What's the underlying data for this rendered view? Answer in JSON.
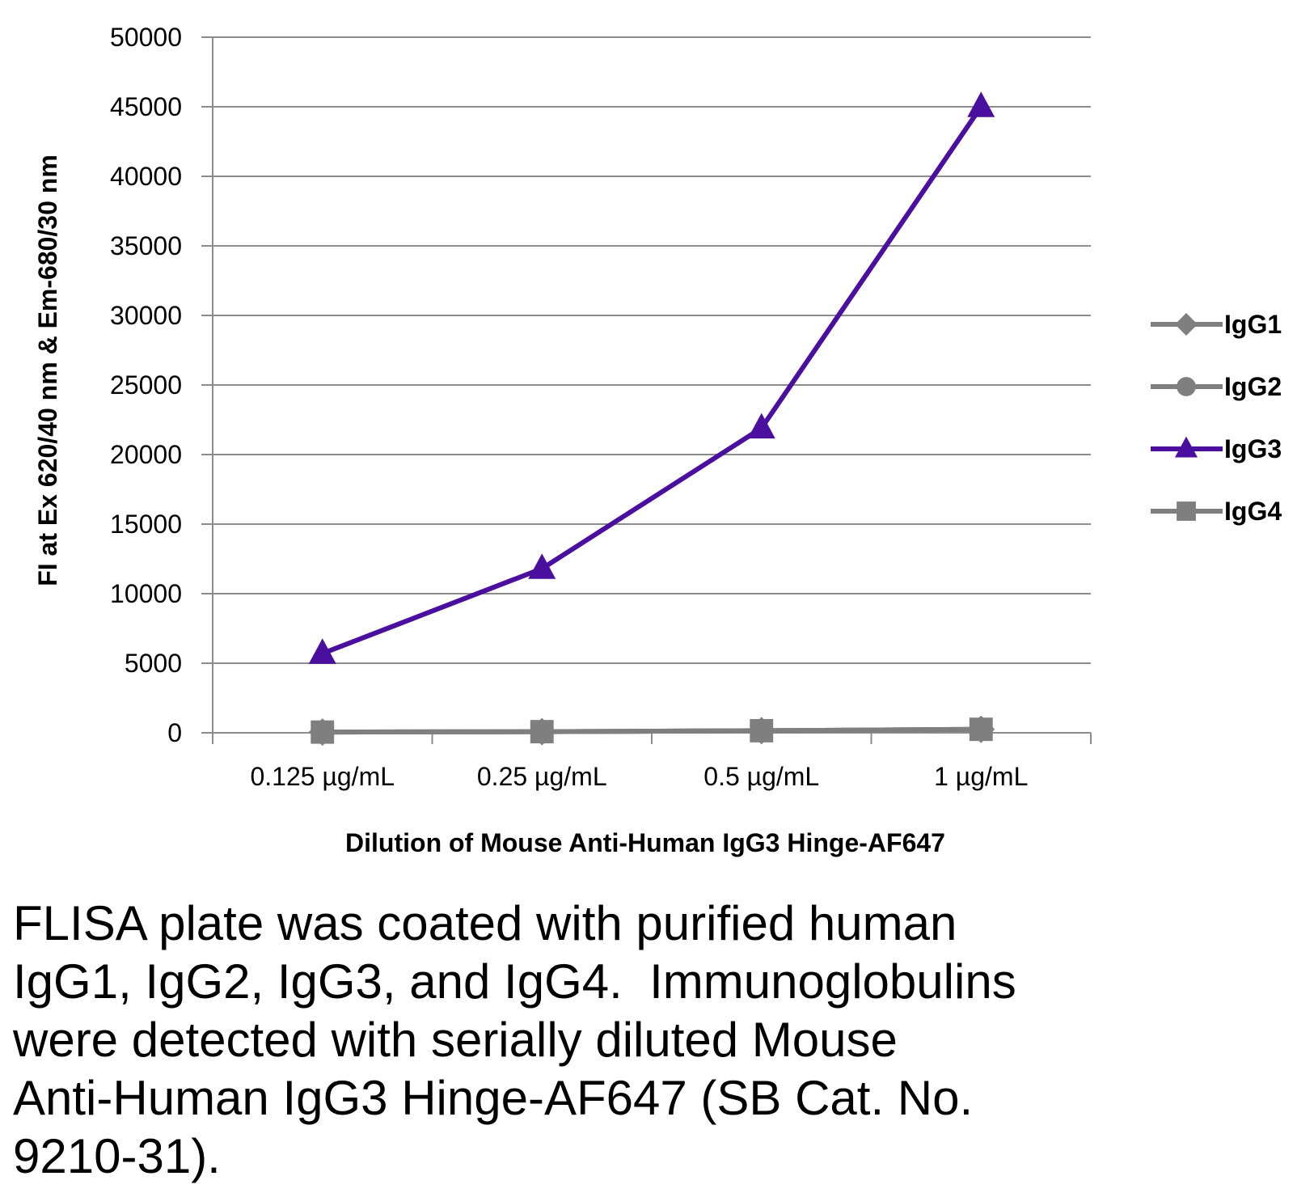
{
  "chart_data": {
    "type": "line",
    "categories": [
      "0.125 µg/mL",
      "0.25 µg/mL",
      "0.5 µg/mL",
      "1 µg/mL"
    ],
    "xlabel": "Dilution of Mouse Anti-Human IgG3 Hinge-AF647",
    "ylabel": "FI at Ex 620/40 nm & Em-680/30 nm",
    "ylim": [
      0,
      50000
    ],
    "yticks": [
      0,
      5000,
      10000,
      15000,
      20000,
      25000,
      30000,
      35000,
      40000,
      45000,
      50000
    ],
    "grid": true,
    "legend": "right",
    "series": [
      {
        "name": "IgG1",
        "marker": "diamond",
        "color": "#7f7f7f",
        "values": [
          50,
          80,
          150,
          250
        ]
      },
      {
        "name": "IgG2",
        "marker": "circle",
        "color": "#7f7f7f",
        "values": [
          50,
          80,
          150,
          250
        ]
      },
      {
        "name": "IgG3",
        "marker": "triangle",
        "color": "#4b0fa0",
        "values": [
          5700,
          11800,
          21900,
          45000
        ]
      },
      {
        "name": "IgG4",
        "marker": "square",
        "color": "#7f7f7f",
        "values": [
          50,
          80,
          150,
          250
        ]
      }
    ]
  },
  "caption": "FLISA plate was coated with purified human\nIgG1, IgG2, IgG3, and IgG4.  Immunoglobulins\nwere detected with serially diluted Mouse\nAnti-Human IgG3 Hinge-AF647 (SB Cat. No.\n9210-31)."
}
